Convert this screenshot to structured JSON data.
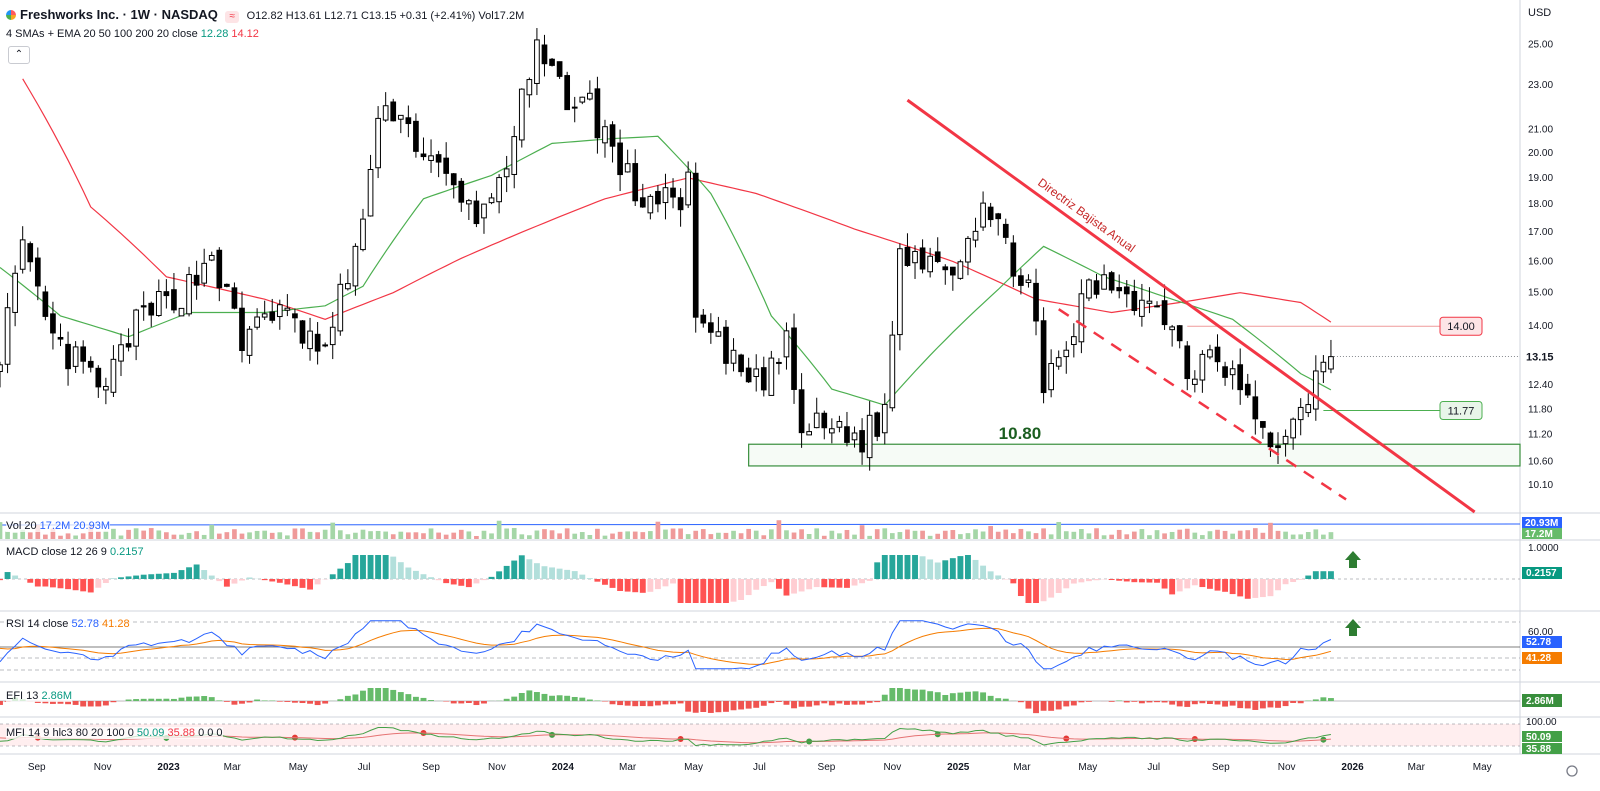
{
  "header": {
    "symbol": "Freshworks Inc. · 1W · NASDAQ",
    "ohlc": "O12.82 H13.61 L12.71 C13.15 +0.31 (+2.41%) Vol17.2M",
    "indicator_name": "4 SMAs + EMA 20 50 100 200 20 close",
    "indicator_val1": "12.28",
    "indicator_val2": "14.12",
    "currency": "USD",
    "collapse_glyph": "⌃"
  },
  "colors": {
    "up_candle": "#ffffff",
    "down_candle": "#000000",
    "sma_green": "#4caf50",
    "sma_red": "#f23645",
    "trendline": "#f23645",
    "support_zone": "#388e3c",
    "macd_pos": "#26a69a",
    "macd_pos_light": "#b2dfdb",
    "macd_neg": "#ff5252",
    "macd_neg_light": "#ffcdd2",
    "rsi": "#2962ff",
    "rsi_ma": "#f57c00"
  },
  "chart_data": {
    "type": "candlestick",
    "title": "Freshworks Inc. · 1W · NASDAQ",
    "price_axis": {
      "scale": "log",
      "range": [
        9.55,
        26.3
      ],
      "ticks": [
        "25.00",
        "23.00",
        "21.00",
        "20.00",
        "19.00",
        "18.00",
        "17.00",
        "16.00",
        "15.00",
        "14.00",
        "12.40",
        "11.80",
        "11.20",
        "10.60",
        "10.10"
      ]
    },
    "time_axis": {
      "range": [
        "2022-07-29",
        "2026-06-05"
      ],
      "labels": [
        {
          "d": "2022-09-01",
          "t": "Sep"
        },
        {
          "d": "2022-11-01",
          "t": "Nov"
        },
        {
          "d": "2023-01-01",
          "t": "2023"
        },
        {
          "d": "2023-03-01",
          "t": "Mar"
        },
        {
          "d": "2023-05-01",
          "t": "May"
        },
        {
          "d": "2023-07-01",
          "t": "Jul"
        },
        {
          "d": "2023-09-01",
          "t": "Sep"
        },
        {
          "d": "2023-11-01",
          "t": "Nov"
        },
        {
          "d": "2024-01-01",
          "t": "2024"
        },
        {
          "d": "2024-03-01",
          "t": "Mar"
        },
        {
          "d": "2024-05-01",
          "t": "May"
        },
        {
          "d": "2024-07-01",
          "t": "Jul"
        },
        {
          "d": "2024-09-01",
          "t": "Sep"
        },
        {
          "d": "2024-11-01",
          "t": "Nov"
        },
        {
          "d": "2025-01-01",
          "t": "2025"
        },
        {
          "d": "2025-03-01",
          "t": "Mar"
        },
        {
          "d": "2025-05-01",
          "t": "May"
        },
        {
          "d": "2025-07-01",
          "t": "Jul"
        },
        {
          "d": "2025-09-01",
          "t": "Sep"
        },
        {
          "d": "2025-11-01",
          "t": "Nov"
        },
        {
          "d": "2026-01-01",
          "t": "2026"
        },
        {
          "d": "2026-03-01",
          "t": "Mar"
        },
        {
          "d": "2026-05-01",
          "t": "May"
        }
      ]
    },
    "close_anchors": [
      [
        "2022-07-29",
        13.4
      ],
      [
        "2022-08-19",
        16.2
      ],
      [
        "2022-09-16",
        13.5
      ],
      [
        "2022-10-14",
        12.8
      ],
      [
        "2022-11-04",
        12.2
      ],
      [
        "2022-11-25",
        13.8
      ],
      [
        "2022-12-23",
        14.6
      ],
      [
        "2023-01-20",
        15.2
      ],
      [
        "2023-02-10",
        16.3
      ],
      [
        "2023-03-10",
        13.4
      ],
      [
        "2023-03-31",
        14.6
      ],
      [
        "2023-04-28",
        14.0
      ],
      [
        "2023-05-26",
        13.2
      ],
      [
        "2023-06-16",
        15.6
      ],
      [
        "2023-06-30",
        17.4
      ],
      [
        "2023-07-21",
        22.5
      ],
      [
        "2023-08-11",
        21.0
      ],
      [
        "2023-09-08",
        19.2
      ],
      [
        "2023-09-29",
        18.0
      ],
      [
        "2023-10-20",
        17.6
      ],
      [
        "2023-11-10",
        19.8
      ],
      [
        "2023-12-08",
        24.4
      ],
      [
        "2023-12-29",
        22.8
      ],
      [
        "2024-01-26",
        22.0
      ],
      [
        "2024-02-16",
        20.1
      ],
      [
        "2024-03-08",
        18.4
      ],
      [
        "2024-04-05",
        18.0
      ],
      [
        "2024-04-26",
        18.6
      ],
      [
        "2024-05-03",
        14.2
      ],
      [
        "2024-05-31",
        13.1
      ],
      [
        "2024-06-28",
        12.4
      ],
      [
        "2024-07-26",
        13.4
      ],
      [
        "2024-08-09",
        11.3
      ],
      [
        "2024-09-06",
        11.4
      ],
      [
        "2024-10-04",
        11.1
      ],
      [
        "2024-10-25",
        11.7
      ],
      [
        "2024-11-08",
        16.2
      ],
      [
        "2024-12-06",
        16.3
      ],
      [
        "2024-12-27",
        15.9
      ],
      [
        "2025-01-24",
        18.0
      ],
      [
        "2025-02-14",
        16.4
      ],
      [
        "2025-03-07",
        15.4
      ],
      [
        "2025-03-21",
        12.1
      ],
      [
        "2025-04-11",
        13.4
      ],
      [
        "2025-05-02",
        15.1
      ],
      [
        "2025-05-30",
        15.3
      ],
      [
        "2025-06-27",
        14.6
      ],
      [
        "2025-07-18",
        14.3
      ],
      [
        "2025-08-01",
        12.6
      ],
      [
        "2025-08-22",
        13.6
      ],
      [
        "2025-09-19",
        12.4
      ],
      [
        "2025-10-10",
        11.1
      ],
      [
        "2025-10-31",
        11.0
      ],
      [
        "2025-11-14",
        12.1
      ],
      [
        "2025-11-28",
        12.4
      ],
      [
        "2025-12-12",
        13.15
      ]
    ],
    "sma_green_anchors": [
      [
        "2022-07-29",
        15.8
      ],
      [
        "2022-09-23",
        14.3
      ],
      [
        "2022-11-25",
        13.7
      ],
      [
        "2023-01-20",
        14.4
      ],
      [
        "2023-03-31",
        14.4
      ],
      [
        "2023-05-26",
        14.6
      ],
      [
        "2023-06-30",
        15.2
      ],
      [
        "2023-08-25",
        18.2
      ],
      [
        "2023-10-27",
        19.1
      ],
      [
        "2023-12-22",
        20.4
      ],
      [
        "2024-02-16",
        20.6
      ],
      [
        "2024-03-29",
        20.7
      ],
      [
        "2024-05-17",
        18.4
      ],
      [
        "2024-07-12",
        14.3
      ],
      [
        "2024-09-06",
        12.3
      ],
      [
        "2024-10-25",
        11.9
      ],
      [
        "2024-12-13",
        13.4
      ],
      [
        "2025-02-07",
        15.1
      ],
      [
        "2025-03-21",
        16.5
      ],
      [
        "2025-05-16",
        15.5
      ],
      [
        "2025-07-18",
        14.8
      ],
      [
        "2025-09-12",
        14.2
      ],
      [
        "2025-11-14",
        12.7
      ],
      [
        "2025-12-12",
        12.28
      ]
    ],
    "sma_red_anchors": [
      [
        "2022-08-19",
        23.3
      ],
      [
        "2022-10-21",
        17.9
      ],
      [
        "2022-12-30",
        15.5
      ],
      [
        "2023-03-31",
        14.8
      ],
      [
        "2023-05-26",
        14.2
      ],
      [
        "2023-07-28",
        15.0
      ],
      [
        "2023-09-29",
        16.1
      ],
      [
        "2023-12-01",
        17.1
      ],
      [
        "2024-02-09",
        18.2
      ],
      [
        "2024-04-26",
        19.0
      ],
      [
        "2024-06-28",
        18.4
      ],
      [
        "2024-09-27",
        17.1
      ],
      [
        "2024-12-27",
        16.0
      ],
      [
        "2025-03-14",
        14.8
      ],
      [
        "2025-05-23",
        14.4
      ],
      [
        "2025-07-25",
        14.7
      ],
      [
        "2025-09-19",
        15.0
      ],
      [
        "2025-11-14",
        14.7
      ],
      [
        "2025-12-12",
        14.12
      ]
    ],
    "annotations": {
      "trendline": {
        "label": "Directriz Bajista Anual",
        "from": [
          "2024-11-15",
          22.3
        ],
        "to": [
          "2026-04-24",
          9.55
        ]
      },
      "channel": {
        "from": [
          "2025-04-04",
          14.5
        ],
        "to": [
          "2025-12-26",
          9.8
        ]
      },
      "support_zone": {
        "label": "10.80",
        "from": "2024-06-21",
        "low": 10.5,
        "high": 10.98
      },
      "level_14": {
        "value": 14.0,
        "label": "14.00",
        "from": "2025-08-01"
      },
      "level_1177": {
        "value": 11.77,
        "label": "11.77",
        "from": "2025-12-05"
      },
      "last_price": {
        "value": 13.15,
        "label": "13.15"
      }
    },
    "panes": {
      "vol": {
        "legend": "Vol 20",
        "v1": "17.2M",
        "v2": "20.93M",
        "axis_labels": [
          "20.93M",
          "17.2M"
        ]
      },
      "macd": {
        "legend": "MACD close 12 26 9",
        "v1": "0.2157",
        "axis_labels": [
          "1.0000",
          "0.2157"
        ]
      },
      "rsi": {
        "legend": "RSI 14 close",
        "v1": "52.78",
        "v2": "41.28",
        "axis_labels": [
          "60.00",
          "52.78",
          "41.28"
        ]
      },
      "efi": {
        "legend": "EFI 13",
        "v1": "2.86M",
        "axis_labels": [
          "2.86M"
        ]
      },
      "mfi": {
        "legend": "MFI 14 9 hlc3 80 20 100 0",
        "v1": "50.09",
        "v2": "35.88",
        "v3": "0 0 0",
        "axis_labels": [
          "100.00",
          "50.09",
          "35.88"
        ]
      }
    }
  }
}
